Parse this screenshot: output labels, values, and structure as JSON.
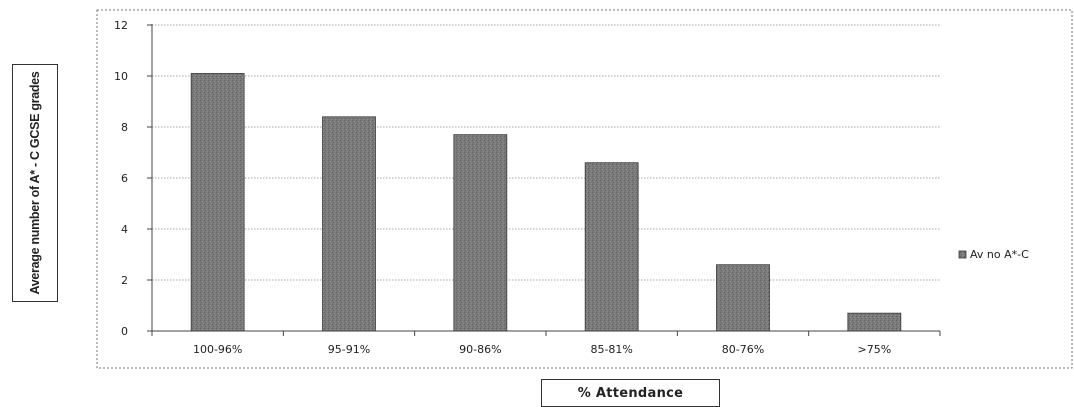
{
  "chart_data": {
    "type": "bar",
    "categories": [
      "100-96%",
      "95-91%",
      "90-86%",
      "85-81%",
      "80-76%",
      ">75%"
    ],
    "series": [
      {
        "name": "Av no A*-C",
        "values": [
          10.1,
          8.4,
          7.7,
          6.6,
          2.6,
          0.7
        ],
        "color": "#777777"
      }
    ],
    "xlabel": "% Attendance",
    "ylabel": "Average number of A* - C GCSE grades",
    "ylim": [
      0,
      12
    ],
    "yticks": [
      0,
      2,
      4,
      6,
      8,
      10,
      12
    ],
    "ytick_labels": [
      "0",
      "2",
      "4",
      "6",
      "8",
      "10",
      "12"
    ],
    "grid": true,
    "legend_position": "right"
  }
}
